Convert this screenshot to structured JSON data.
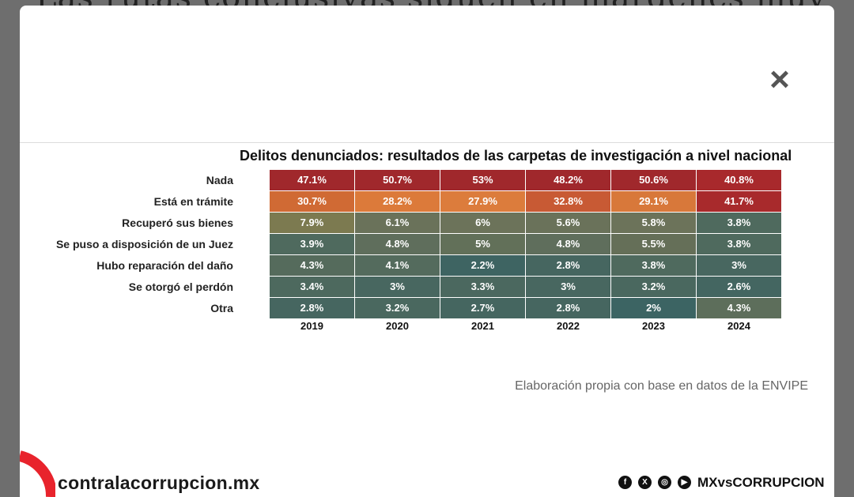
{
  "background_text": "Las rutas conclusivas siguen en márgenes muy",
  "close_label": "×",
  "chart_data": {
    "type": "heatmap",
    "title": "Delitos denunciados: resultados de las carpetas de investigación a nivel nacional",
    "categories": [
      "2019",
      "2020",
      "2021",
      "2022",
      "2023",
      "2024"
    ],
    "rows": [
      "Nada",
      "Está en trámite",
      "Recuperó sus bienes",
      "Se puso a disposición de un Juez",
      "Hubo reparación del daño",
      "Se otorgó el perdón",
      "Otra"
    ],
    "values": [
      [
        "47.1%",
        "50.7%",
        "53%",
        "48.2%",
        "50.6%",
        "40.8%"
      ],
      [
        "30.7%",
        "28.2%",
        "27.9%",
        "32.8%",
        "29.1%",
        "41.7%"
      ],
      [
        "7.9%",
        "6.1%",
        "6%",
        "5.6%",
        "5.8%",
        "3.8%"
      ],
      [
        "3.9%",
        "4.8%",
        "5%",
        "4.8%",
        "5.5%",
        "3.8%"
      ],
      [
        "4.3%",
        "4.1%",
        "2.2%",
        "2.8%",
        "3.8%",
        "3%"
      ],
      [
        "3.4%",
        "3%",
        "3.3%",
        "3%",
        "3.2%",
        "2.6%"
      ],
      [
        "2.8%",
        "3.2%",
        "2.7%",
        "2.8%",
        "2%",
        "4.3%"
      ]
    ],
    "colors": [
      [
        "#a0282c",
        "#a0282c",
        "#a0282c",
        "#a0282c",
        "#a0282c",
        "#a8292c"
      ],
      [
        "#d06a34",
        "#dc7a3a",
        "#dc7c3c",
        "#c85a34",
        "#d8783a",
        "#a82a2c"
      ],
      [
        "#7c7a50",
        "#6a725a",
        "#6c735a",
        "#6a725a",
        "#6c735a",
        "#4f6a5e"
      ],
      [
        "#4f6a5e",
        "#5f6e5c",
        "#627059",
        "#5f6e5c",
        "#656f58",
        "#4f6a5e"
      ],
      [
        "#556b5c",
        "#546b5d",
        "#3e6462",
        "#466660",
        "#4f6a5e",
        "#486760"
      ],
      [
        "#4d695e",
        "#486760",
        "#4b685f",
        "#486760",
        "#4a685f",
        "#446661"
      ],
      [
        "#466660",
        "#4a685f",
        "#456660",
        "#466660",
        "#3c6463",
        "#5d6e5b"
      ]
    ]
  },
  "source": "Elaboración propia con base en datos de la ENVIPE",
  "footer": {
    "logo": "contralacorrupcion.mx",
    "social_icons": [
      "facebook-icon",
      "x-icon",
      "instagram-icon",
      "youtube-icon"
    ],
    "handle": "MXvsCORRUPCION",
    "brand_color": "#e8232c"
  }
}
